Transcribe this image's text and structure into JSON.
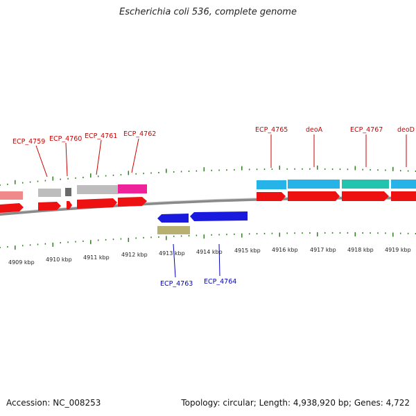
{
  "title": "Escherichia coli 536, complete genome",
  "footer": {
    "accession": "Accession: NC_008253",
    "summary": "Topology: circular; Length: 4,938,920 bp; Genes: 4,722"
  },
  "colors": {
    "top_label": "#cc0000",
    "bottom_label": "#0000bb",
    "tick": "#2e7d1e",
    "backbone": "#8a8a8a",
    "cds_forward": "#ee1111",
    "cds_reverse": "#1a1adf",
    "gene_gray": "#bdbdbd",
    "gene_pink": "#f08a8a",
    "gene_magenta": "#ee2299",
    "gene_cyan": "#26b3e8",
    "gene_teal": "#22c4b0",
    "gene_olive": "#b8b070"
  },
  "kbp_ticks": [
    "4909 kbp",
    "4910 kbp",
    "4911 kbp",
    "4912 kbp",
    "4913 kbp",
    "4914 kbp",
    "4915 kbp",
    "4916 kbp",
    "4917 kbp",
    "4918 kbp",
    "4919 kbp"
  ],
  "top_labels": [
    "ECP_4759",
    "ECP_4760",
    "ECP_4761",
    "ECP_4762",
    "ECP_4765",
    "deoA",
    "ECP_4767",
    "deoD"
  ],
  "bottom_labels": [
    "ECP_4763",
    "ECP_4764"
  ]
}
